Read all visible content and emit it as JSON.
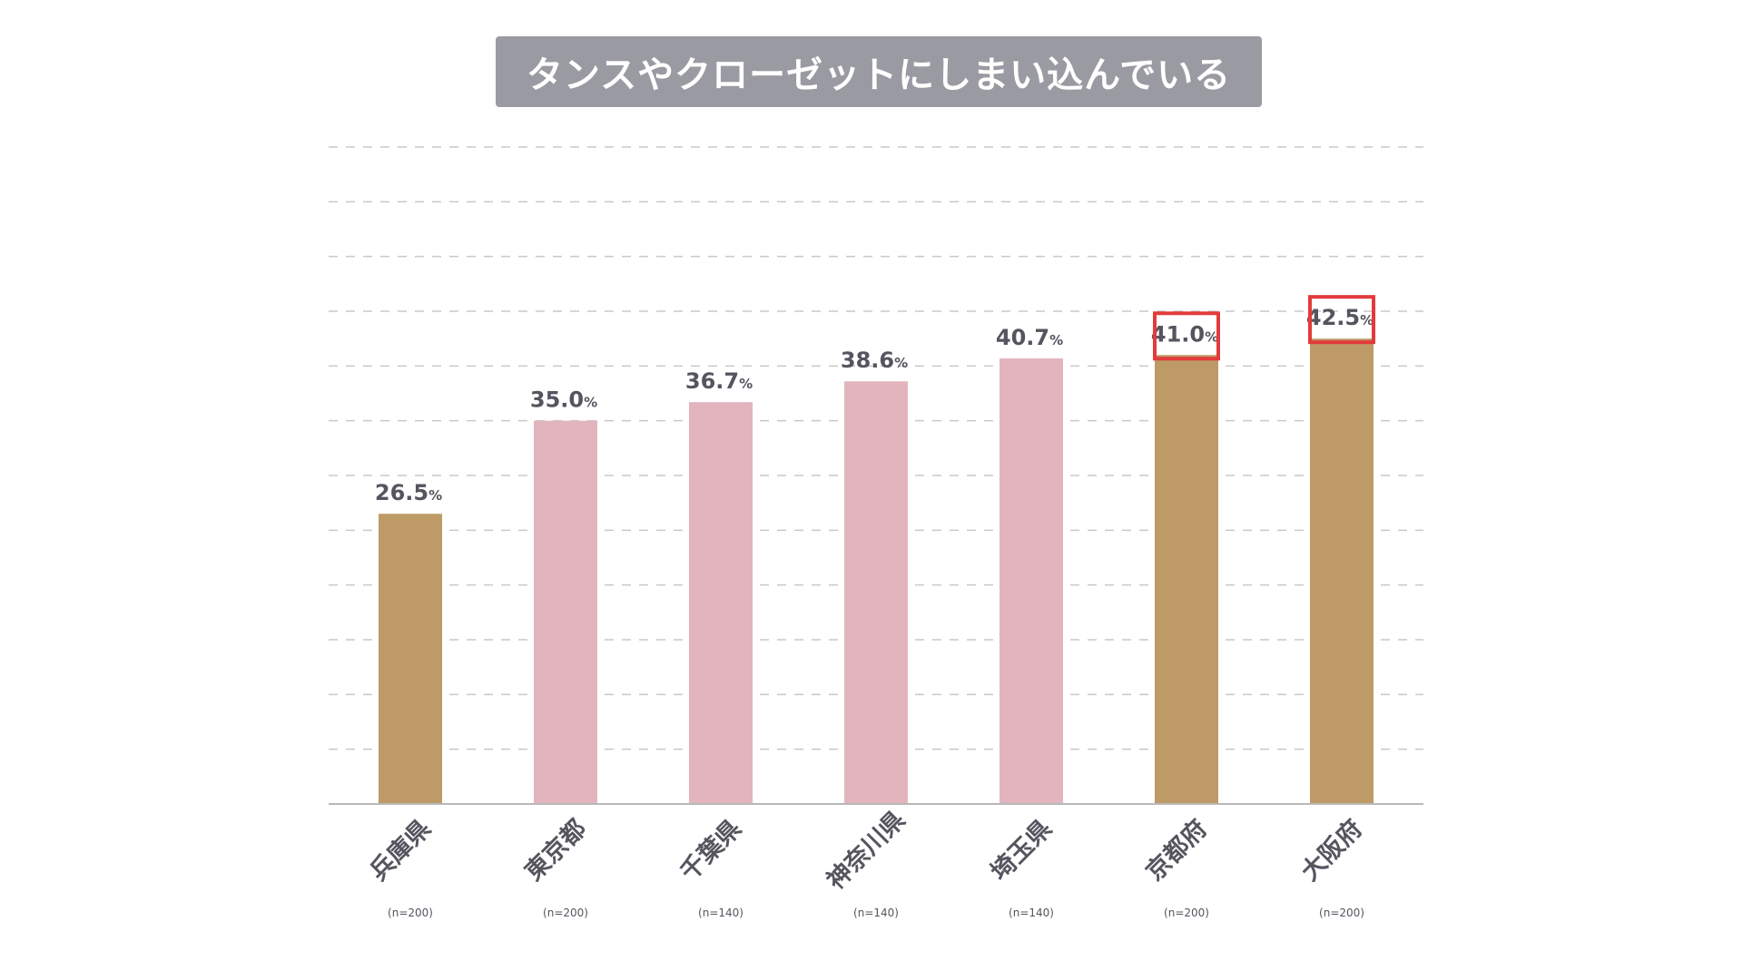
{
  "chart_data": {
    "type": "bar",
    "title": "タンスやクローゼットにしまい込んでいる",
    "xlabel": "",
    "ylabel": "",
    "ylim": [
      0,
      60
    ],
    "grid": true,
    "value_suffix": "%",
    "categories": [
      "兵庫県",
      "東京都",
      "千葉県",
      "神奈川県",
      "埼玉県",
      "京都府",
      "大阪府"
    ],
    "sample_sizes": [
      "(n=200)",
      "(n=200)",
      "(n=140)",
      "(n=140)",
      "(n=140)",
      "(n=200)",
      "(n=200)"
    ],
    "values": [
      26.5,
      35.0,
      36.7,
      38.6,
      40.7,
      41.0,
      42.5
    ],
    "value_labels": [
      "26.5",
      "35.0",
      "36.7",
      "38.6",
      "40.7",
      "41.0",
      "42.5"
    ],
    "region_group": [
      "kansai",
      "kanto",
      "kanto",
      "kanto",
      "kanto",
      "kansai",
      "kansai"
    ],
    "highlighted": [
      false,
      false,
      false,
      false,
      false,
      true,
      true
    ],
    "colors": {
      "kansai": "#be9a66",
      "kanto": "#e2b5be",
      "highlight_box": "#e23b3b",
      "title_bg": "#9a9ba2",
      "text": "#55555f"
    }
  }
}
